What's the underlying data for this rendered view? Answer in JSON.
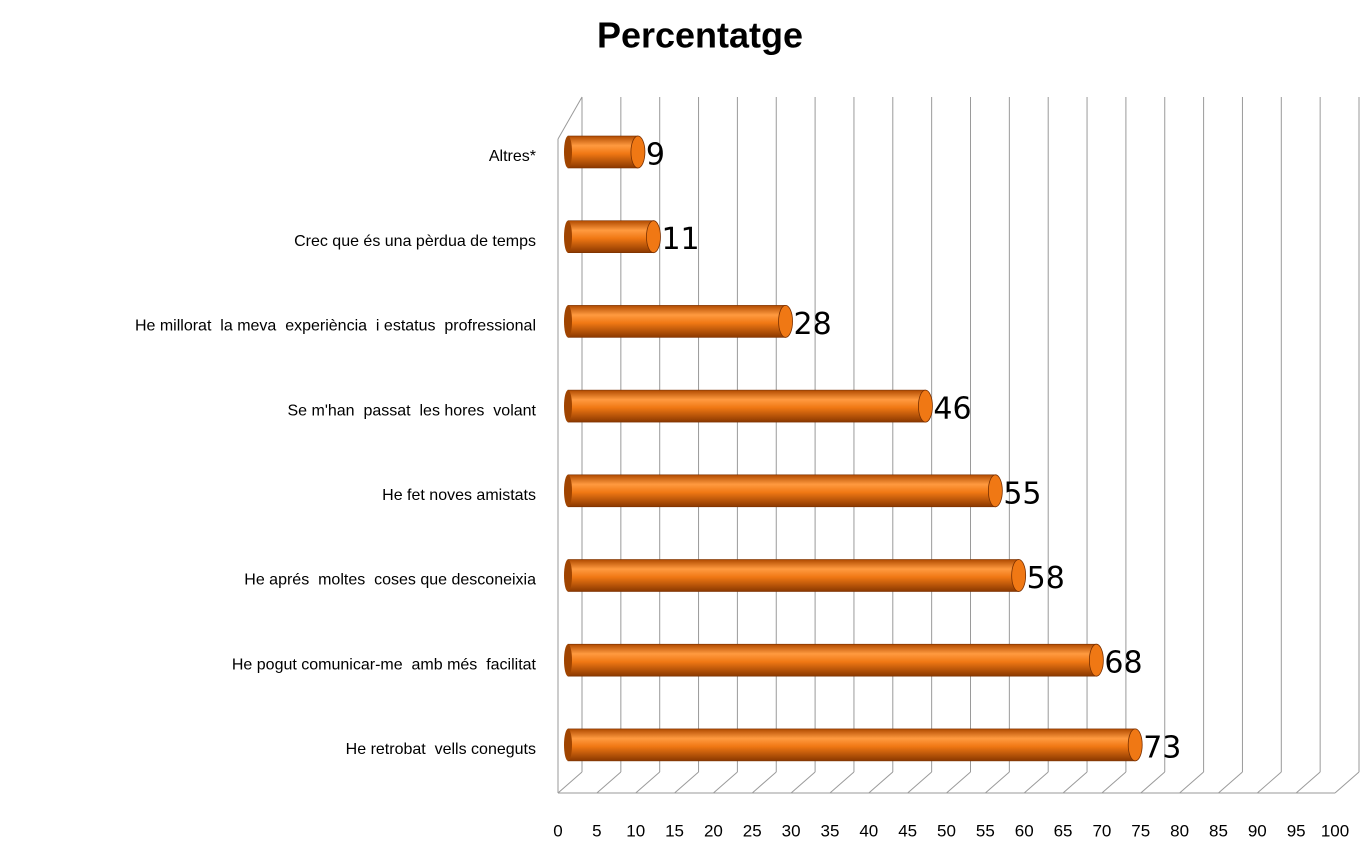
{
  "chart_data": {
    "type": "bar",
    "orientation": "horizontal",
    "title": "Percentatge",
    "categories": [
      "Altres*",
      "Crec que és una pèrdua de temps",
      "He millorat  la meva  experiència  i estatus  profressional",
      "Se m'han  passat  les hores  volant",
      "He fet noves amistats",
      "He aprés  moltes  coses que desconeixia",
      "He pogut comunicar-me  amb més  facilitat",
      "He retrobat  vells coneguts"
    ],
    "values": [
      9,
      11,
      28,
      46,
      55,
      58,
      68,
      73
    ],
    "color": "#f07814",
    "xlim": [
      0,
      100
    ],
    "xticks": [
      0,
      5,
      10,
      15,
      20,
      25,
      30,
      35,
      40,
      45,
      50,
      55,
      60,
      65,
      70,
      75,
      80,
      85,
      90,
      95,
      100
    ],
    "grid": true
  }
}
